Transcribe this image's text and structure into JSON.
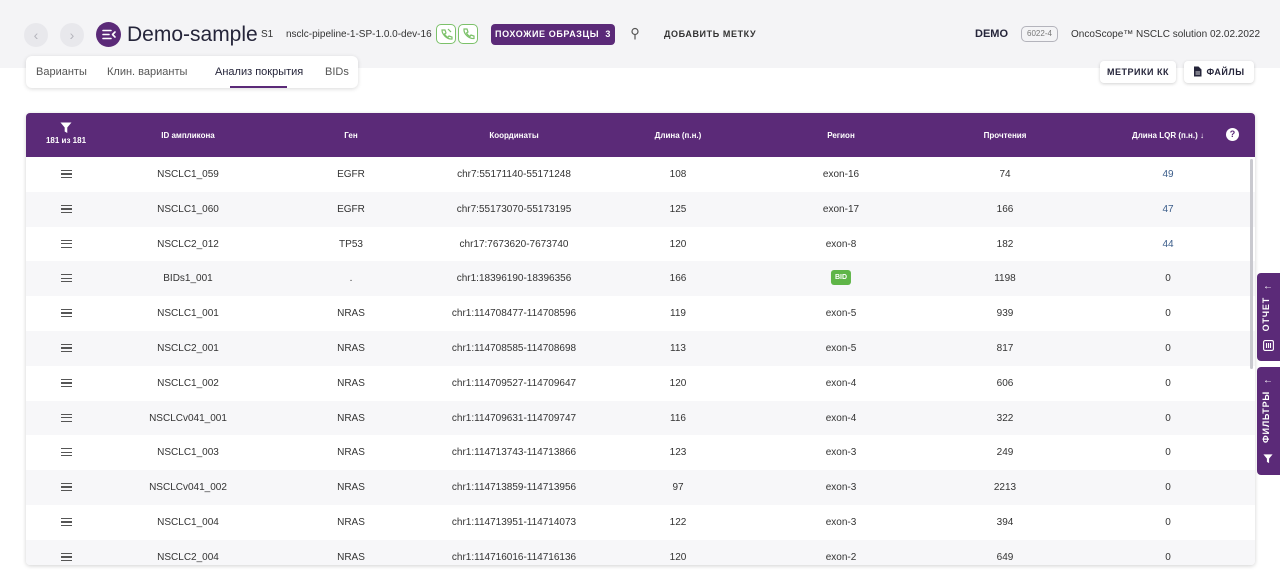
{
  "header": {
    "back_icon": "‹",
    "forward_icon": "›",
    "title": "Demo-sample",
    "sample_id": "S1",
    "pipeline": "nsclc-pipeline-1-SP-1.0.0-dev-16",
    "similar_samples_label": "ПОХОЖИЕ ОБРАЗЦЫ",
    "similar_samples_count": "3",
    "add_label": "ДОБАВИТЬ МЕТКУ",
    "account": "DEMO",
    "version_badge": "6022-4",
    "product": "OncoScope™ NSCLC solution",
    "date": "02.02.2022"
  },
  "tabs": [
    {
      "label": "Варианты",
      "active": false
    },
    {
      "label": "Клин. варианты",
      "active": false
    },
    {
      "label": "Анализ покрытия",
      "active": true
    },
    {
      "label": "BIDs",
      "active": false
    }
  ],
  "actions": {
    "qc_metrics": "МЕТРИКИ КК",
    "files": "ФАЙЛЫ"
  },
  "table": {
    "filter_count": "181 из 181",
    "columns": [
      "ID ампликона",
      "Ген",
      "Координаты",
      "Длина (п.н.)",
      "Регион",
      "Прочтения",
      "Длина LQR (п.н.) ↓"
    ],
    "help": "?",
    "rows": [
      {
        "id": "NSCLC1_059",
        "gene": "EGFR",
        "coords": "chr7:55171140-55171248",
        "length": "108",
        "region": "exon-16",
        "reads": "74",
        "lqr": "49"
      },
      {
        "id": "NSCLC1_060",
        "gene": "EGFR",
        "coords": "chr7:55173070-55173195",
        "length": "125",
        "region": "exon-17",
        "reads": "166",
        "lqr": "47"
      },
      {
        "id": "NSCLC2_012",
        "gene": "TP53",
        "coords": "chr17:7673620-7673740",
        "length": "120",
        "region": "exon-8",
        "reads": "182",
        "lqr": "44"
      },
      {
        "id": "BIDs1_001",
        "gene": ".",
        "coords": "chr1:18396190-18396356",
        "length": "166",
        "region": "BID",
        "reads": "1198",
        "lqr": "0"
      },
      {
        "id": "NSCLC1_001",
        "gene": "NRAS",
        "coords": "chr1:114708477-114708596",
        "length": "119",
        "region": "exon-5",
        "reads": "939",
        "lqr": "0"
      },
      {
        "id": "NSCLC2_001",
        "gene": "NRAS",
        "coords": "chr1:114708585-114708698",
        "length": "113",
        "region": "exon-5",
        "reads": "817",
        "lqr": "0"
      },
      {
        "id": "NSCLC1_002",
        "gene": "NRAS",
        "coords": "chr1:114709527-114709647",
        "length": "120",
        "region": "exon-4",
        "reads": "606",
        "lqr": "0"
      },
      {
        "id": "NSCLCv041_001",
        "gene": "NRAS",
        "coords": "chr1:114709631-114709747",
        "length": "116",
        "region": "exon-4",
        "reads": "322",
        "lqr": "0"
      },
      {
        "id": "NSCLC1_003",
        "gene": "NRAS",
        "coords": "chr1:114713743-114713866",
        "length": "123",
        "region": "exon-3",
        "reads": "249",
        "lqr": "0"
      },
      {
        "id": "NSCLCv041_002",
        "gene": "NRAS",
        "coords": "chr1:114713859-114713956",
        "length": "97",
        "region": "exon-3",
        "reads": "2213",
        "lqr": "0"
      },
      {
        "id": "NSCLC1_004",
        "gene": "NRAS",
        "coords": "chr1:114713951-114714073",
        "length": "122",
        "region": "exon-3",
        "reads": "394",
        "lqr": "0"
      },
      {
        "id": "NSCLC2_004",
        "gene": "NRAS",
        "coords": "chr1:114716016-114716136",
        "length": "120",
        "region": "exon-2",
        "reads": "649",
        "lqr": "0"
      }
    ]
  },
  "side_panels": {
    "report": "ОТЧЕТ",
    "filters": "ФИЛЬТРЫ",
    "arrow": "←"
  },
  "colors": {
    "brand": "#5b2a78",
    "bid_badge": "#5fb548",
    "phone_icon": "#7cc16a",
    "lqr_value": "#3b5d8a"
  }
}
